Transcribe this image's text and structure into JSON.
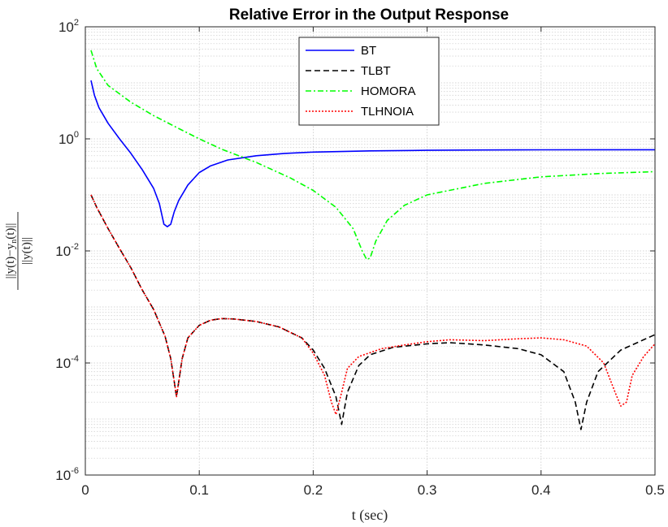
{
  "chart_data": {
    "type": "line",
    "title": "Relative Error in the Output Response",
    "xlabel": "t (sec)",
    "ylabel": "||y(t)−yₙ(t)|| / ||y(t)||",
    "ylabel_num": "||y(t)−y",
    "ylabel_num_sub": "n",
    "ylabel_num_tail": "(t)||",
    "ylabel_den": "||y(t)||",
    "xlim": [
      0,
      0.5
    ],
    "ylim": [
      1e-06,
      100
    ],
    "yscale": "log",
    "grid": true,
    "legend_position": "top-center",
    "x_ticks": [
      "0",
      "0.1",
      "0.2",
      "0.3",
      "0.4",
      "0.5"
    ],
    "y_ticks": [
      {
        "base": "10",
        "exp": "-6"
      },
      {
        "base": "10",
        "exp": "-4"
      },
      {
        "base": "10",
        "exp": "-2"
      },
      {
        "base": "10",
        "exp": "0"
      },
      {
        "base": "10",
        "exp": "2"
      }
    ],
    "series": [
      {
        "name": "BT",
        "color": "#0000ff",
        "style": "solid",
        "points": [
          [
            0.005,
            11
          ],
          [
            0.008,
            6
          ],
          [
            0.012,
            3.6
          ],
          [
            0.02,
            1.9
          ],
          [
            0.03,
            1.0
          ],
          [
            0.04,
            0.55
          ],
          [
            0.05,
            0.28
          ],
          [
            0.06,
            0.13
          ],
          [
            0.065,
            0.07
          ],
          [
            0.069,
            0.03
          ],
          [
            0.072,
            0.027
          ],
          [
            0.075,
            0.03
          ],
          [
            0.078,
            0.05
          ],
          [
            0.082,
            0.08
          ],
          [
            0.09,
            0.15
          ],
          [
            0.1,
            0.25
          ],
          [
            0.11,
            0.33
          ],
          [
            0.125,
            0.42
          ],
          [
            0.15,
            0.5
          ],
          [
            0.175,
            0.55
          ],
          [
            0.2,
            0.58
          ],
          [
            0.25,
            0.61
          ],
          [
            0.3,
            0.625
          ],
          [
            0.35,
            0.633
          ],
          [
            0.4,
            0.638
          ],
          [
            0.45,
            0.64
          ],
          [
            0.5,
            0.64
          ]
        ]
      },
      {
        "name": "TLBT",
        "color": "#000000",
        "style": "dashed",
        "points": [
          [
            0.005,
            0.1
          ],
          [
            0.01,
            0.06
          ],
          [
            0.02,
            0.025
          ],
          [
            0.03,
            0.011
          ],
          [
            0.04,
            0.005
          ],
          [
            0.05,
            0.002
          ],
          [
            0.06,
            0.0009
          ],
          [
            0.07,
            0.0003
          ],
          [
            0.075,
            0.00012
          ],
          [
            0.08,
            2.5e-05
          ],
          [
            0.085,
            0.00012
          ],
          [
            0.09,
            0.00028
          ],
          [
            0.1,
            0.00047
          ],
          [
            0.11,
            0.00058
          ],
          [
            0.12,
            0.00062
          ],
          [
            0.13,
            0.00061
          ],
          [
            0.15,
            0.00055
          ],
          [
            0.17,
            0.00044
          ],
          [
            0.19,
            0.00028
          ],
          [
            0.2,
            0.00017
          ],
          [
            0.21,
            8e-05
          ],
          [
            0.22,
            2.5e-05
          ],
          [
            0.225,
            8e-06
          ],
          [
            0.23,
            3e-05
          ],
          [
            0.24,
            9e-05
          ],
          [
            0.25,
            0.00014
          ],
          [
            0.27,
            0.00019
          ],
          [
            0.3,
            0.00022
          ],
          [
            0.32,
            0.00023
          ],
          [
            0.35,
            0.00021
          ],
          [
            0.38,
            0.00018
          ],
          [
            0.4,
            0.00014
          ],
          [
            0.42,
            7e-05
          ],
          [
            0.43,
            2e-05
          ],
          [
            0.435,
            6.5e-06
          ],
          [
            0.44,
            2e-05
          ],
          [
            0.45,
            7e-05
          ],
          [
            0.47,
            0.00017
          ],
          [
            0.49,
            0.00026
          ],
          [
            0.5,
            0.00032
          ]
        ]
      },
      {
        "name": "HOMORA",
        "color": "#00ff00",
        "style": "dashdot",
        "points": [
          [
            0.005,
            38
          ],
          [
            0.01,
            18
          ],
          [
            0.02,
            9
          ],
          [
            0.04,
            4.5
          ],
          [
            0.06,
            2.6
          ],
          [
            0.08,
            1.6
          ],
          [
            0.1,
            1.0
          ],
          [
            0.12,
            0.65
          ],
          [
            0.15,
            0.38
          ],
          [
            0.18,
            0.2
          ],
          [
            0.2,
            0.12
          ],
          [
            0.22,
            0.06
          ],
          [
            0.235,
            0.025
          ],
          [
            0.243,
            0.01
          ],
          [
            0.247,
            0.007
          ],
          [
            0.25,
            0.0075
          ],
          [
            0.255,
            0.015
          ],
          [
            0.265,
            0.035
          ],
          [
            0.28,
            0.065
          ],
          [
            0.3,
            0.1
          ],
          [
            0.35,
            0.16
          ],
          [
            0.4,
            0.21
          ],
          [
            0.45,
            0.24
          ],
          [
            0.5,
            0.26
          ]
        ]
      },
      {
        "name": "TLHNOIA",
        "color": "#ff0000",
        "style": "dotted",
        "points": [
          [
            0.005,
            0.1
          ],
          [
            0.01,
            0.06
          ],
          [
            0.02,
            0.025
          ],
          [
            0.03,
            0.011
          ],
          [
            0.04,
            0.005
          ],
          [
            0.05,
            0.002
          ],
          [
            0.06,
            0.0009
          ],
          [
            0.07,
            0.0003
          ],
          [
            0.075,
            0.00012
          ],
          [
            0.08,
            2.5e-05
          ],
          [
            0.085,
            0.00012
          ],
          [
            0.09,
            0.00028
          ],
          [
            0.1,
            0.00047
          ],
          [
            0.11,
            0.00058
          ],
          [
            0.12,
            0.00062
          ],
          [
            0.13,
            0.00061
          ],
          [
            0.15,
            0.00055
          ],
          [
            0.17,
            0.00044
          ],
          [
            0.19,
            0.00028
          ],
          [
            0.2,
            0.00015
          ],
          [
            0.21,
            6e-05
          ],
          [
            0.216,
            2e-05
          ],
          [
            0.22,
            1.2e-05
          ],
          [
            0.225,
            3e-05
          ],
          [
            0.23,
            8e-05
          ],
          [
            0.24,
            0.00013
          ],
          [
            0.26,
            0.00018
          ],
          [
            0.28,
            0.00021
          ],
          [
            0.3,
            0.00024
          ],
          [
            0.32,
            0.00026
          ],
          [
            0.35,
            0.00025
          ],
          [
            0.38,
            0.00027
          ],
          [
            0.4,
            0.00028
          ],
          [
            0.42,
            0.00026
          ],
          [
            0.44,
            0.0002
          ],
          [
            0.455,
            0.0001
          ],
          [
            0.465,
            3e-05
          ],
          [
            0.47,
            1.7e-05
          ],
          [
            0.475,
            2e-05
          ],
          [
            0.48,
            6e-05
          ],
          [
            0.49,
            0.00013
          ],
          [
            0.5,
            0.00022
          ]
        ]
      }
    ]
  }
}
